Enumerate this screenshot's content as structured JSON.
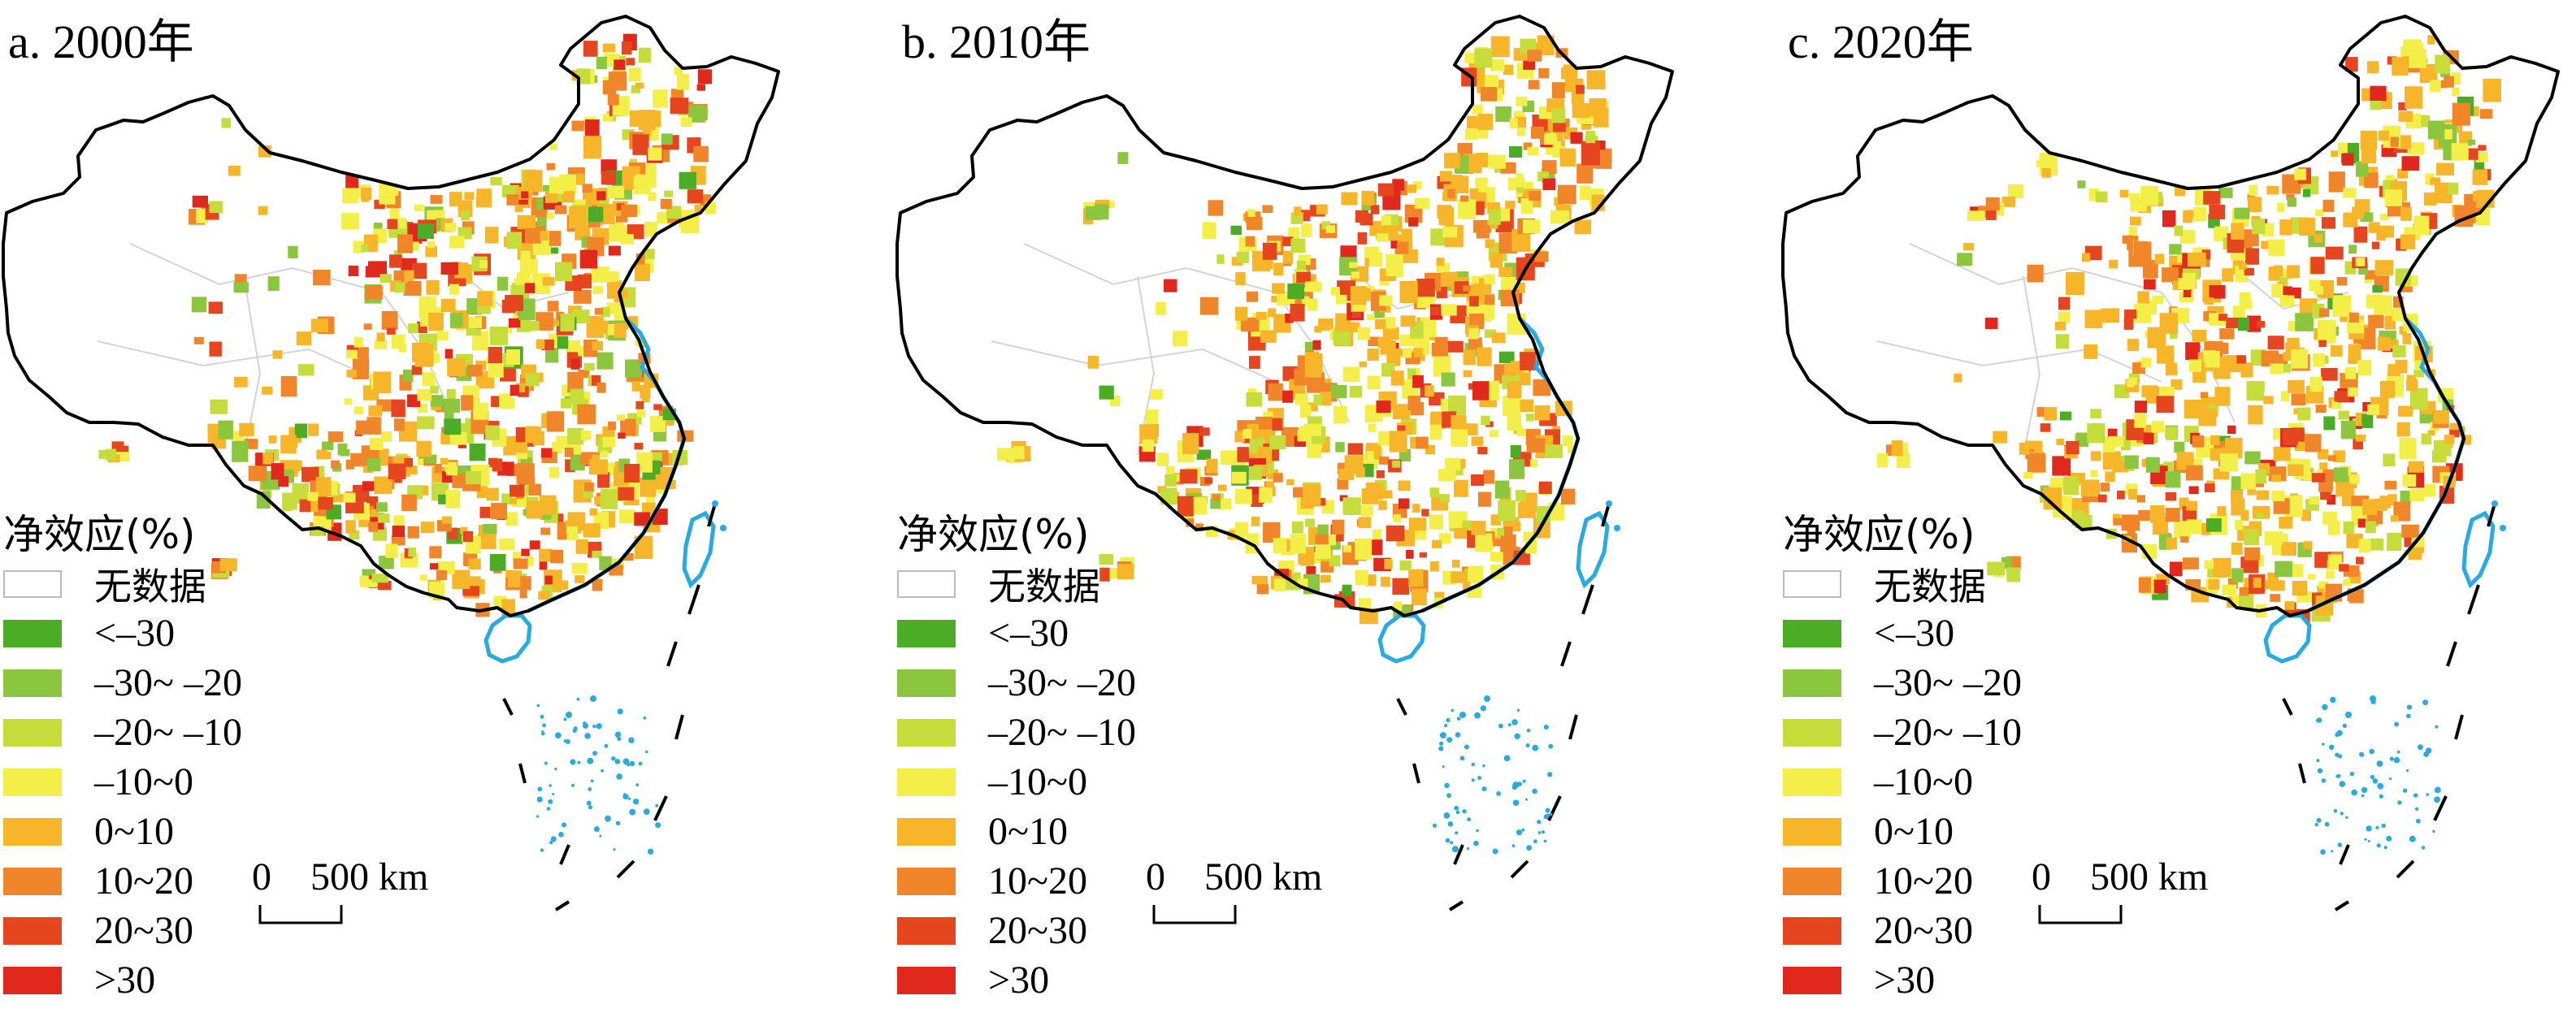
{
  "panels": [
    {
      "id": "a",
      "title": "a. 2000年",
      "seed": 11
    },
    {
      "id": "b",
      "title": "b. 2010年",
      "seed": 23
    },
    {
      "id": "c",
      "title": "c. 2020年",
      "seed": 37
    }
  ],
  "legend": {
    "title": "净效应(%)",
    "items": [
      {
        "label": "无数据",
        "color": "#ffffff",
        "stroke": "#bbbbbb"
      },
      {
        "label": "<–30",
        "color": "#4dac26"
      },
      {
        "label": "–30~ –20",
        "color": "#8cc63f"
      },
      {
        "label": "–20~ –10",
        "color": "#c5dc3a"
      },
      {
        "label": "–10~0",
        "color": "#f3ee48"
      },
      {
        "label": "0~10",
        "color": "#f7b529"
      },
      {
        "label": "10~20",
        "color": "#f0852a"
      },
      {
        "label": "20~30",
        "color": "#e6461f"
      },
      {
        "label": ">30",
        "color": "#e0281c"
      }
    ]
  },
  "scale_bar": {
    "zero": "0",
    "distance": "500 km"
  },
  "colors": {
    "border": "#000000",
    "coast": "#29abe2",
    "province": "#d3d3d3"
  }
}
